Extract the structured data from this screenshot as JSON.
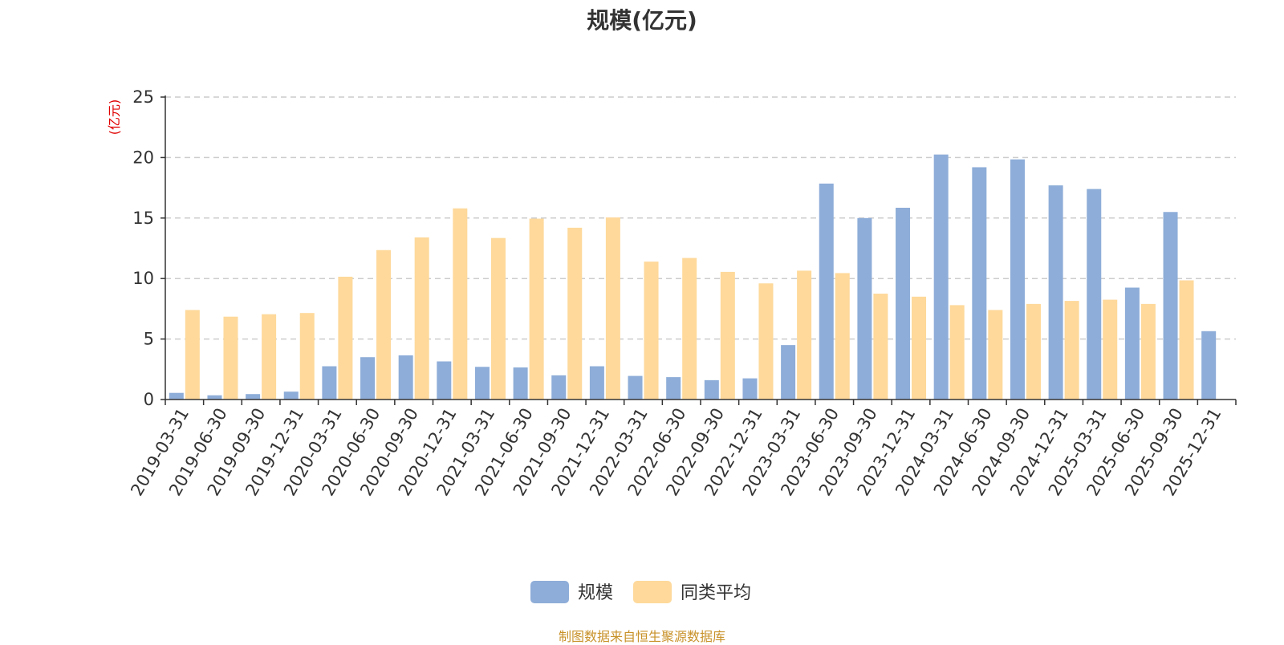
{
  "chart_data": {
    "type": "bar",
    "title": "规模(亿元)",
    "ylabel": "(亿元)",
    "xlabel": "",
    "ylim": [
      0,
      25
    ],
    "yticks": [
      0,
      5,
      10,
      15,
      20,
      25
    ],
    "grid": true,
    "legend_position": "bottom-center",
    "categories": [
      "2019-03-31",
      "2019-06-30",
      "2019-09-30",
      "2019-12-31",
      "2020-03-31",
      "2020-06-30",
      "2020-09-30",
      "2020-12-31",
      "2021-03-31",
      "2021-06-30",
      "2021-09-30",
      "2021-12-31",
      "2022-03-31",
      "2022-06-30",
      "2022-09-30",
      "2022-12-31",
      "2023-03-31",
      "2023-06-30",
      "2023-09-30",
      "2023-12-31",
      "2024-03-31",
      "2024-06-30",
      "2024-09-30",
      "2024-12-31",
      "2025-03-31",
      "2025-06-30",
      "2025-09-30",
      "2025-12-31"
    ],
    "series": [
      {
        "name": "规模",
        "color": "#8eadd8",
        "values": [
          0.55,
          0.35,
          0.45,
          0.65,
          2.75,
          3.5,
          3.65,
          3.15,
          2.7,
          2.65,
          2.0,
          2.75,
          1.95,
          1.85,
          1.6,
          1.75,
          4.5,
          17.85,
          15.0,
          15.85,
          20.25,
          19.2,
          19.85,
          17.7,
          17.4,
          9.25,
          15.5,
          5.65
        ]
      },
      {
        "name": "同类平均",
        "color": "#fed99b",
        "values": [
          7.4,
          6.85,
          7.05,
          7.15,
          10.15,
          12.35,
          13.4,
          15.8,
          13.35,
          14.95,
          14.2,
          15.05,
          11.4,
          11.7,
          10.55,
          9.6,
          10.65,
          10.45,
          8.75,
          8.5,
          7.8,
          7.4,
          7.9,
          8.15,
          8.25,
          7.9,
          9.85,
          null
        ]
      }
    ]
  },
  "footer": {
    "source": "制图数据来自恒生聚源数据库"
  }
}
